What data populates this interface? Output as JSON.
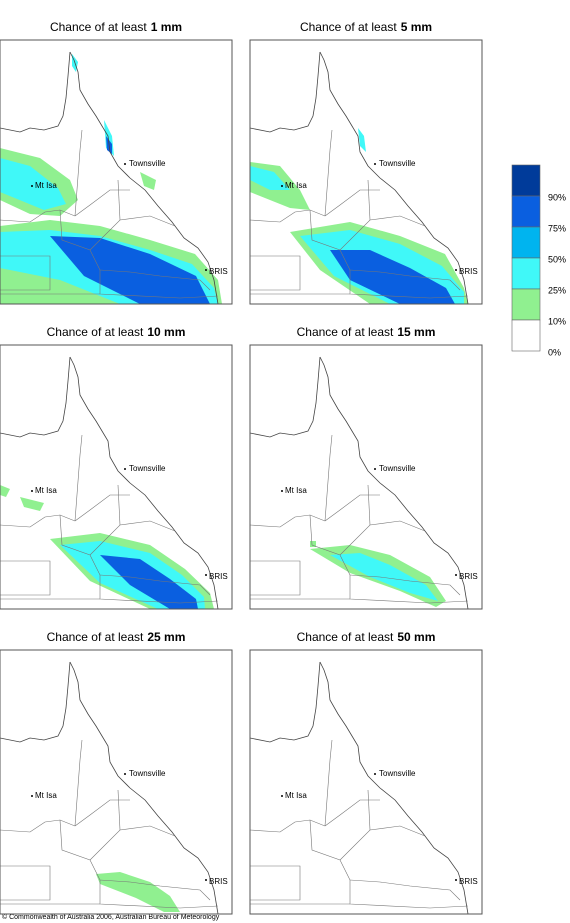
{
  "panels": [
    {
      "title": "Chance of at least",
      "amount": "1 mm"
    },
    {
      "title": "Chance of at least",
      "amount": "5 mm"
    },
    {
      "title": "Chance of at least",
      "amount": "10 mm"
    },
    {
      "title": "Chance of at least",
      "amount": "15 mm"
    },
    {
      "title": "Chance of at least",
      "amount": "25 mm"
    },
    {
      "title": "Chance of at least",
      "amount": "50 mm"
    }
  ],
  "places": [
    "Townsville",
    "Mt Isa",
    "BRIS"
  ],
  "legend": {
    "labels": [
      "90%",
      "75%",
      "50%",
      "25%",
      "10%",
      "0%"
    ]
  },
  "footer": "© Commonwealth of Australia 2006, Australian Bureau of Meteorology"
}
